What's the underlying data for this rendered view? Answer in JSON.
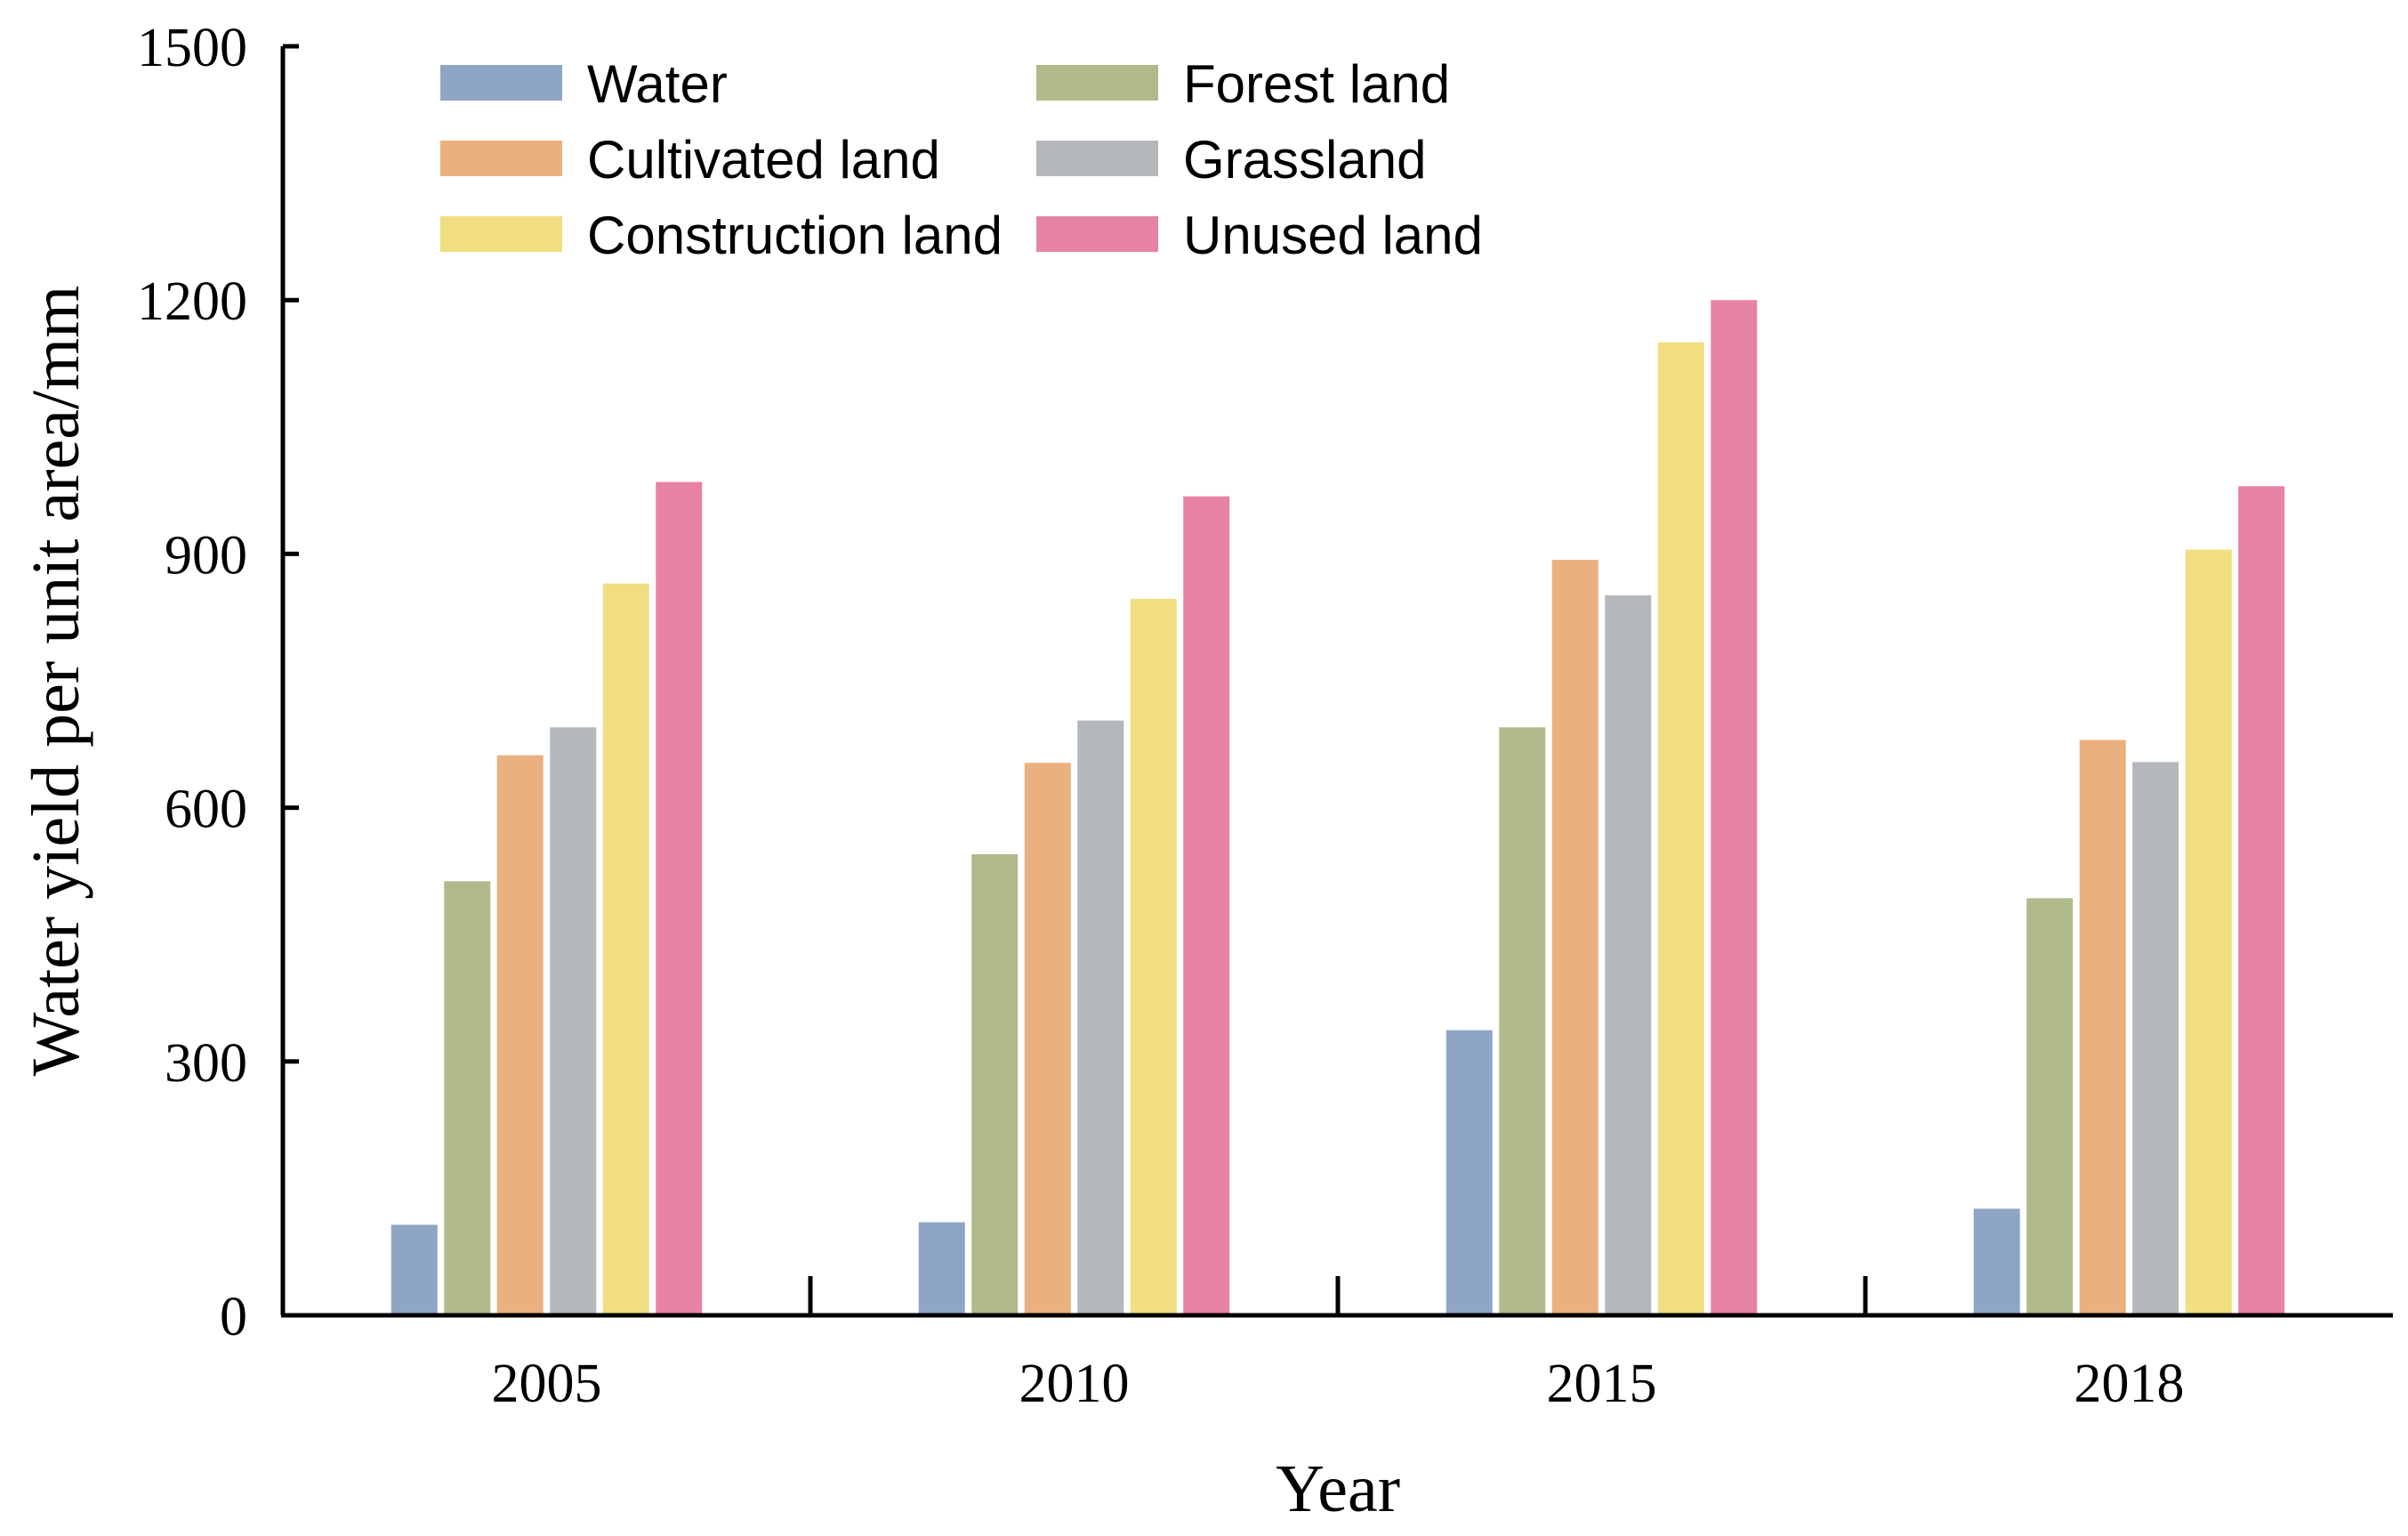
{
  "chart_data": {
    "type": "bar",
    "title": "",
    "xlabel": "Year",
    "ylabel": "Water yield per unit area/mm",
    "ylim": [
      0,
      1500
    ],
    "yticks": [
      "0",
      "300",
      "600",
      "900",
      "1200",
      "1500"
    ],
    "categories": [
      "2005",
      "2010",
      "2015",
      "2018"
    ],
    "legend_position": "top-left",
    "series": [
      {
        "name": "Water",
        "color": "#8fa5c6",
        "values": [
          107,
          110,
          337,
          126
        ]
      },
      {
        "name": "Forest land",
        "color": "#b1ba8b",
        "values": [
          513,
          545,
          695,
          493
        ]
      },
      {
        "name": "Cultivated land",
        "color": "#ebb07f",
        "values": [
          662,
          653,
          893,
          680
        ]
      },
      {
        "name": "Grassland",
        "color": "#b4b8bc",
        "values": [
          695,
          703,
          851,
          654
        ]
      },
      {
        "name": "Construction land",
        "color": "#f0de81",
        "values": [
          865,
          847,
          1150,
          905
        ]
      },
      {
        "name": "Unused land",
        "color": "#e682a6",
        "values": [
          985,
          968,
          1200,
          980
        ]
      }
    ]
  }
}
